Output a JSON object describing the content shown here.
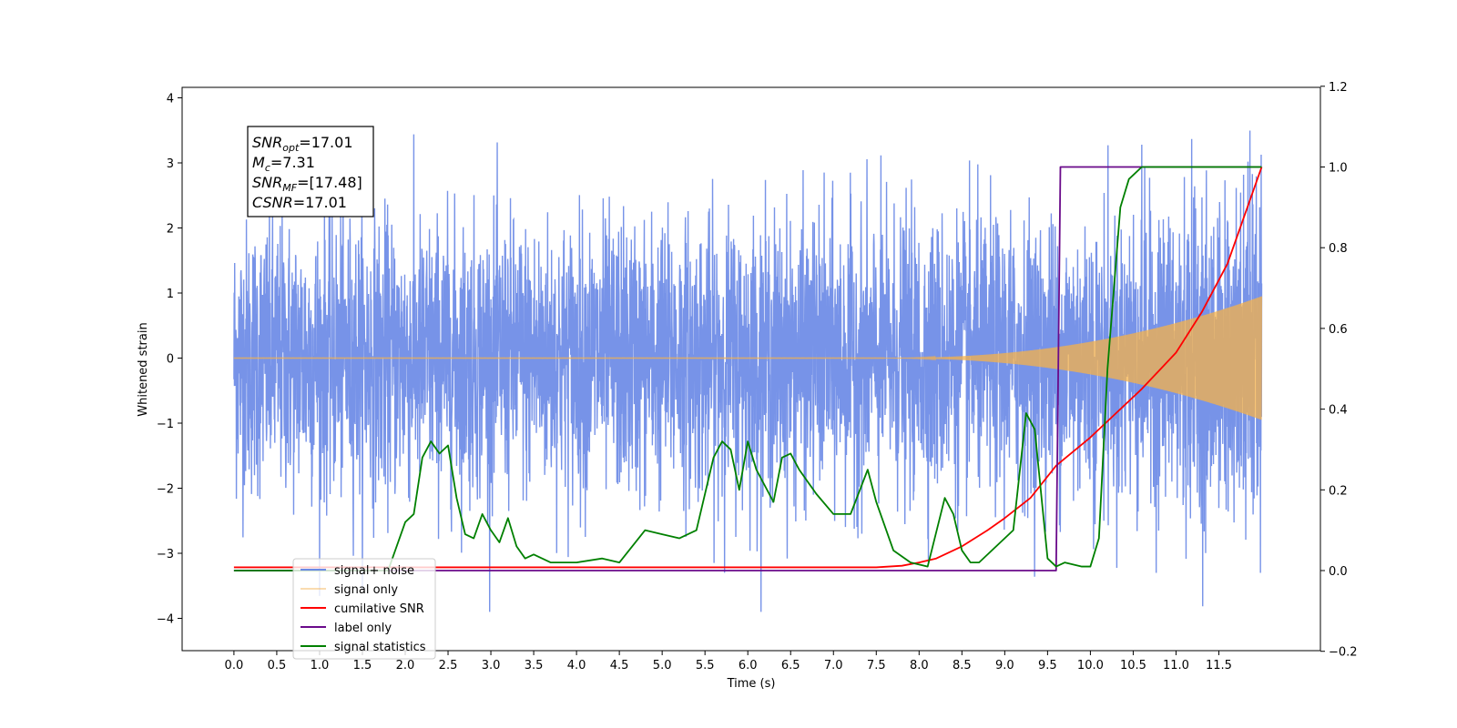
{
  "chart_data": {
    "type": "line",
    "xlabel": "Time (s)",
    "ylabel": "Whitened strain",
    "xlim": [
      -0.6,
      12.7
    ],
    "ylim": [
      -4.5,
      4.15
    ],
    "ylim_right": [
      -0.2,
      1.2
    ],
    "x_ticks": [
      "0.0",
      "0.5",
      "1.0",
      "1.5",
      "2.0",
      "2.5",
      "3.0",
      "3.5",
      "4.0",
      "4.5",
      "5.0",
      "5.5",
      "6.0",
      "6.5",
      "7.0",
      "7.5",
      "8.0",
      "8.5",
      "9.0",
      "9.5",
      "10.0",
      "10.5",
      "11.0",
      "11.5"
    ],
    "y_ticks_left": [
      4,
      3,
      2,
      1,
      0,
      -1,
      -2,
      -3,
      -4
    ],
    "y_ticks_left_labels": [
      "4",
      "3",
      "2",
      "1",
      "0",
      "−1",
      "−2",
      "−3",
      "−4"
    ],
    "y_ticks_right": [
      1.2,
      1.0,
      0.8,
      0.6,
      0.4,
      0.2,
      0.0,
      -0.2
    ],
    "y_ticks_right_labels": [
      "1.2",
      "1.0",
      "0.8",
      "0.6",
      "0.4",
      "0.2",
      "0.0",
      "−0.2"
    ],
    "legend_position": "lower-left",
    "series": [
      {
        "name": "signal+ noise",
        "axis": "left",
        "color": "#6b8ae6",
        "kind": "noise_envelope",
        "x_range": [
          0,
          12.0
        ],
        "envelope_median": 1.6,
        "envelope_peak": 3.7
      },
      {
        "name": "signal only",
        "axis": "left",
        "color": "#f5b14a",
        "kind": "chirp",
        "x_range": [
          0,
          12.0
        ],
        "amplitude_end": 0.95,
        "onset": 7.6
      },
      {
        "name": "cumilative SNR",
        "axis": "right",
        "color": "#ff0000",
        "x": [
          0.0,
          7.5,
          7.8,
          8.0,
          8.2,
          8.5,
          8.8,
          9.0,
          9.3,
          9.6,
          10.0,
          10.3,
          10.6,
          11.0,
          11.3,
          11.6,
          12.0
        ],
        "values": [
          0.008,
          0.008,
          0.012,
          0.02,
          0.03,
          0.06,
          0.1,
          0.13,
          0.18,
          0.26,
          0.33,
          0.39,
          0.45,
          0.54,
          0.64,
          0.76,
          1.0
        ]
      },
      {
        "name": "label only",
        "axis": "right",
        "color": "#6a0a8a",
        "x": [
          0.0,
          9.6,
          9.65,
          12.0
        ],
        "values": [
          0.0,
          0.0,
          1.0,
          1.0
        ]
      },
      {
        "name": "signal statistics",
        "axis": "right",
        "color": "#008000",
        "x": [
          0.0,
          1.8,
          2.0,
          2.1,
          2.2,
          2.3,
          2.4,
          2.5,
          2.6,
          2.7,
          2.8,
          2.9,
          3.0,
          3.1,
          3.2,
          3.3,
          3.4,
          3.5,
          3.7,
          4.0,
          4.3,
          4.5,
          4.8,
          5.0,
          5.2,
          5.4,
          5.6,
          5.7,
          5.8,
          5.9,
          6.0,
          6.1,
          6.3,
          6.4,
          6.5,
          6.6,
          6.8,
          7.0,
          7.2,
          7.4,
          7.5,
          7.7,
          7.9,
          8.1,
          8.3,
          8.4,
          8.5,
          8.6,
          8.7,
          8.9,
          9.1,
          9.25,
          9.35,
          9.5,
          9.6,
          9.7,
          9.9,
          10.0,
          10.1,
          10.2,
          10.35,
          10.45,
          10.6,
          12.0
        ],
        "values": [
          0.0,
          0.0,
          0.12,
          0.14,
          0.28,
          0.32,
          0.29,
          0.31,
          0.18,
          0.09,
          0.08,
          0.14,
          0.1,
          0.07,
          0.13,
          0.06,
          0.03,
          0.04,
          0.02,
          0.02,
          0.03,
          0.02,
          0.1,
          0.09,
          0.08,
          0.1,
          0.28,
          0.32,
          0.3,
          0.2,
          0.32,
          0.25,
          0.17,
          0.28,
          0.29,
          0.25,
          0.19,
          0.14,
          0.14,
          0.25,
          0.17,
          0.05,
          0.02,
          0.01,
          0.18,
          0.14,
          0.05,
          0.02,
          0.02,
          0.06,
          0.1,
          0.39,
          0.35,
          0.03,
          0.01,
          0.02,
          0.01,
          0.01,
          0.08,
          0.5,
          0.9,
          0.97,
          1.0,
          1.0
        ]
      }
    ],
    "annotation": {
      "lines": [
        {
          "main": "SNR",
          "sub": "opt",
          "value": "=17.01"
        },
        {
          "main": "M",
          "sub": "c",
          "value": "=7.31"
        },
        {
          "main": "SNR",
          "sub": "MF",
          "value": "=[17.48]"
        },
        {
          "main": "CSNR",
          "sub": "",
          "value": "=17.01"
        }
      ]
    }
  }
}
